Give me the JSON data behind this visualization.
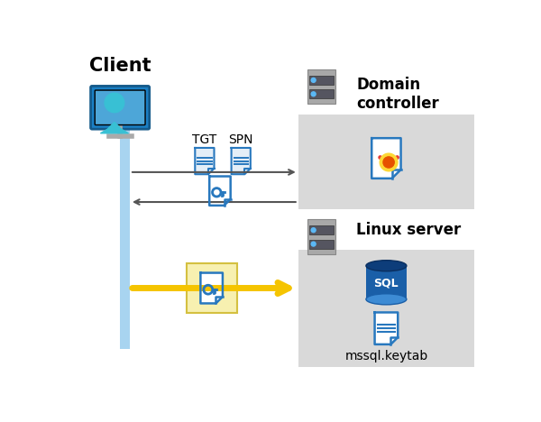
{
  "bg_color": "#ffffff",
  "client_label": "Client",
  "domain_label": "Domain\ncontroller",
  "linux_label": "Linux server",
  "tgt_label": "TGT",
  "spn_label": "SPN",
  "mssql_label": "mssql.keytab",
  "arrow1_color": "#555555",
  "arrow2_color": "#555555",
  "arrow3_color": "#F5C400",
  "timeline_color": "#a8d4f0",
  "domain_box_color": "#d9d9d9",
  "linux_box_color": "#d9d9d9",
  "key_highlight_color": "#f7f0b0",
  "doc_blue": "#2878BE",
  "server_dark": "#888888",
  "sql_blue": "#1a5fa8"
}
